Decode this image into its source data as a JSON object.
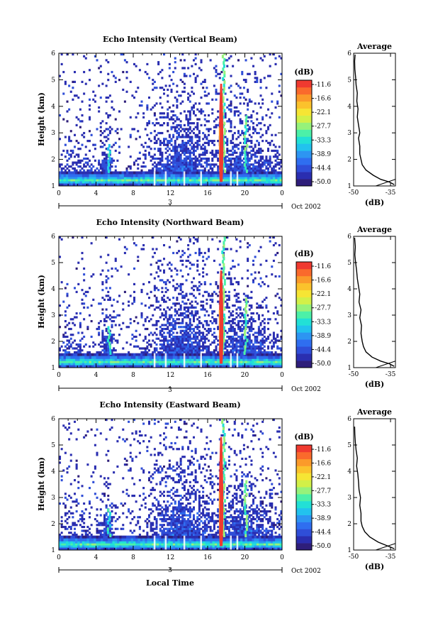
{
  "figure": {
    "date_label": "Oct 2002",
    "day_label": "3",
    "xlabel": "Local Time"
  },
  "colorbar": {
    "unit": "(dB)",
    "tick_labels": [
      "-11.6",
      "-16.6",
      "-22.1",
      "-27.7",
      "-33.3",
      "-38.9",
      "-44.4",
      "-50.0"
    ],
    "colors": [
      "#2e1e7a",
      "#2a2eb0",
      "#2f4ed8",
      "#2f6ef0",
      "#2d95f2",
      "#22c2ee",
      "#22e0d6",
      "#4cf0a8",
      "#96f27a",
      "#d2f048",
      "#f6e534",
      "#fbc22c",
      "#fb9a2a",
      "#fa6a2c",
      "#f03a30"
    ]
  },
  "chart_data": [
    {
      "type": "heatmap",
      "title": "Echo Intensity (Vertical Beam)",
      "ylabel": "Height (km)",
      "x_ticks": [
        "0",
        "4",
        "8",
        "12",
        "16",
        "20",
        "0"
      ],
      "y_ticks": [
        "1",
        "2",
        "3",
        "4",
        "5",
        "6"
      ],
      "xlim": [
        0,
        24
      ],
      "ylim": [
        1,
        6
      ],
      "average": {
        "title": "Average",
        "xlabel": "(dB)",
        "x_ticks": [
          "-50",
          "-35"
        ],
        "y_ticks": [
          "1",
          "2",
          "3",
          "4",
          "5",
          "6"
        ],
        "xlim": [
          -50,
          -33
        ],
        "ylim": [
          1,
          6
        ],
        "profile": [
          [
            -33.5,
            1.05
          ],
          [
            -35.5,
            1.15
          ],
          [
            -39,
            1.25
          ],
          [
            -42,
            1.4
          ],
          [
            -45,
            1.6
          ],
          [
            -46.5,
            1.8
          ],
          [
            -47,
            2.0
          ],
          [
            -47.5,
            2.2
          ],
          [
            -47.5,
            2.5
          ],
          [
            -48,
            2.8
          ],
          [
            -47.5,
            3.0
          ],
          [
            -48,
            3.3
          ],
          [
            -48.5,
            3.6
          ],
          [
            -48.2,
            3.9
          ],
          [
            -48.7,
            4.2
          ],
          [
            -48.5,
            4.5
          ],
          [
            -49,
            4.8
          ],
          [
            -49.2,
            5.1
          ],
          [
            -49.5,
            5.4
          ],
          [
            -49.6,
            5.7
          ],
          [
            -49.4,
            5.95
          ]
        ],
        "line": [
          [
            -41,
            1.0
          ],
          [
            -33,
            1.25
          ]
        ]
      }
    },
    {
      "type": "heatmap",
      "title": "Echo Intensity (Northward Beam)",
      "ylabel": "Height (km)",
      "x_ticks": [
        "0",
        "4",
        "8",
        "12",
        "16",
        "20",
        "0"
      ],
      "y_ticks": [
        "1",
        "2",
        "3",
        "4",
        "5",
        "6"
      ],
      "xlim": [
        0,
        24
      ],
      "ylim": [
        1,
        6
      ],
      "average": {
        "title": "Average",
        "xlabel": "(dB)",
        "x_ticks": [
          "-50",
          "-35"
        ],
        "y_ticks": [
          "1",
          "2",
          "3",
          "4",
          "5",
          "6"
        ],
        "xlim": [
          -50,
          -33
        ],
        "ylim": [
          1,
          6
        ],
        "profile": [
          [
            -33.5,
            1.05
          ],
          [
            -35.5,
            1.15
          ],
          [
            -39,
            1.25
          ],
          [
            -42.5,
            1.4
          ],
          [
            -45,
            1.6
          ],
          [
            -46,
            1.8
          ],
          [
            -46.5,
            2.0
          ],
          [
            -47,
            2.3
          ],
          [
            -46.8,
            2.6
          ],
          [
            -47.5,
            2.9
          ],
          [
            -47,
            3.2
          ],
          [
            -47.8,
            3.5
          ],
          [
            -47.5,
            3.8
          ],
          [
            -48,
            4.1
          ],
          [
            -48.5,
            4.4
          ],
          [
            -48.8,
            4.7
          ],
          [
            -49.2,
            5.0
          ],
          [
            -49.5,
            5.3
          ],
          [
            -49.3,
            5.6
          ],
          [
            -49.6,
            5.95
          ]
        ],
        "line": [
          [
            -41,
            1.0
          ],
          [
            -33,
            1.25
          ]
        ]
      }
    },
    {
      "type": "heatmap",
      "title": "Echo Intensity (Eastward Beam)",
      "ylabel": "Height (km)",
      "x_ticks": [
        "0",
        "4",
        "8",
        "12",
        "16",
        "20",
        "0"
      ],
      "y_ticks": [
        "1",
        "2",
        "3",
        "4",
        "5",
        "6"
      ],
      "xlim": [
        0,
        24
      ],
      "ylim": [
        1,
        6
      ],
      "average": {
        "title": "Average",
        "xlabel": "(dB)",
        "x_ticks": [
          "-50",
          "-35"
        ],
        "y_ticks": [
          "1",
          "2",
          "3",
          "4",
          "5",
          "6"
        ],
        "xlim": [
          -50,
          -33
        ],
        "ylim": [
          1,
          6
        ],
        "profile": [
          [
            -33.5,
            1.05
          ],
          [
            -36,
            1.15
          ],
          [
            -40,
            1.3
          ],
          [
            -43.5,
            1.5
          ],
          [
            -45.5,
            1.7
          ],
          [
            -46.5,
            1.9
          ],
          [
            -47,
            2.1
          ],
          [
            -47,
            2.4
          ],
          [
            -47.5,
            2.7
          ],
          [
            -47.2,
            3.0
          ],
          [
            -47.8,
            3.3
          ],
          [
            -48,
            3.6
          ],
          [
            -48.3,
            3.9
          ],
          [
            -48.8,
            4.2
          ],
          [
            -48.5,
            4.5
          ],
          [
            -49,
            4.8
          ],
          [
            -49.3,
            5.1
          ],
          [
            -49.5,
            5.4
          ],
          [
            -49.6,
            5.7
          ]
        ],
        "line": [
          [
            -41,
            1.0
          ],
          [
            -33,
            1.25
          ]
        ]
      }
    }
  ]
}
